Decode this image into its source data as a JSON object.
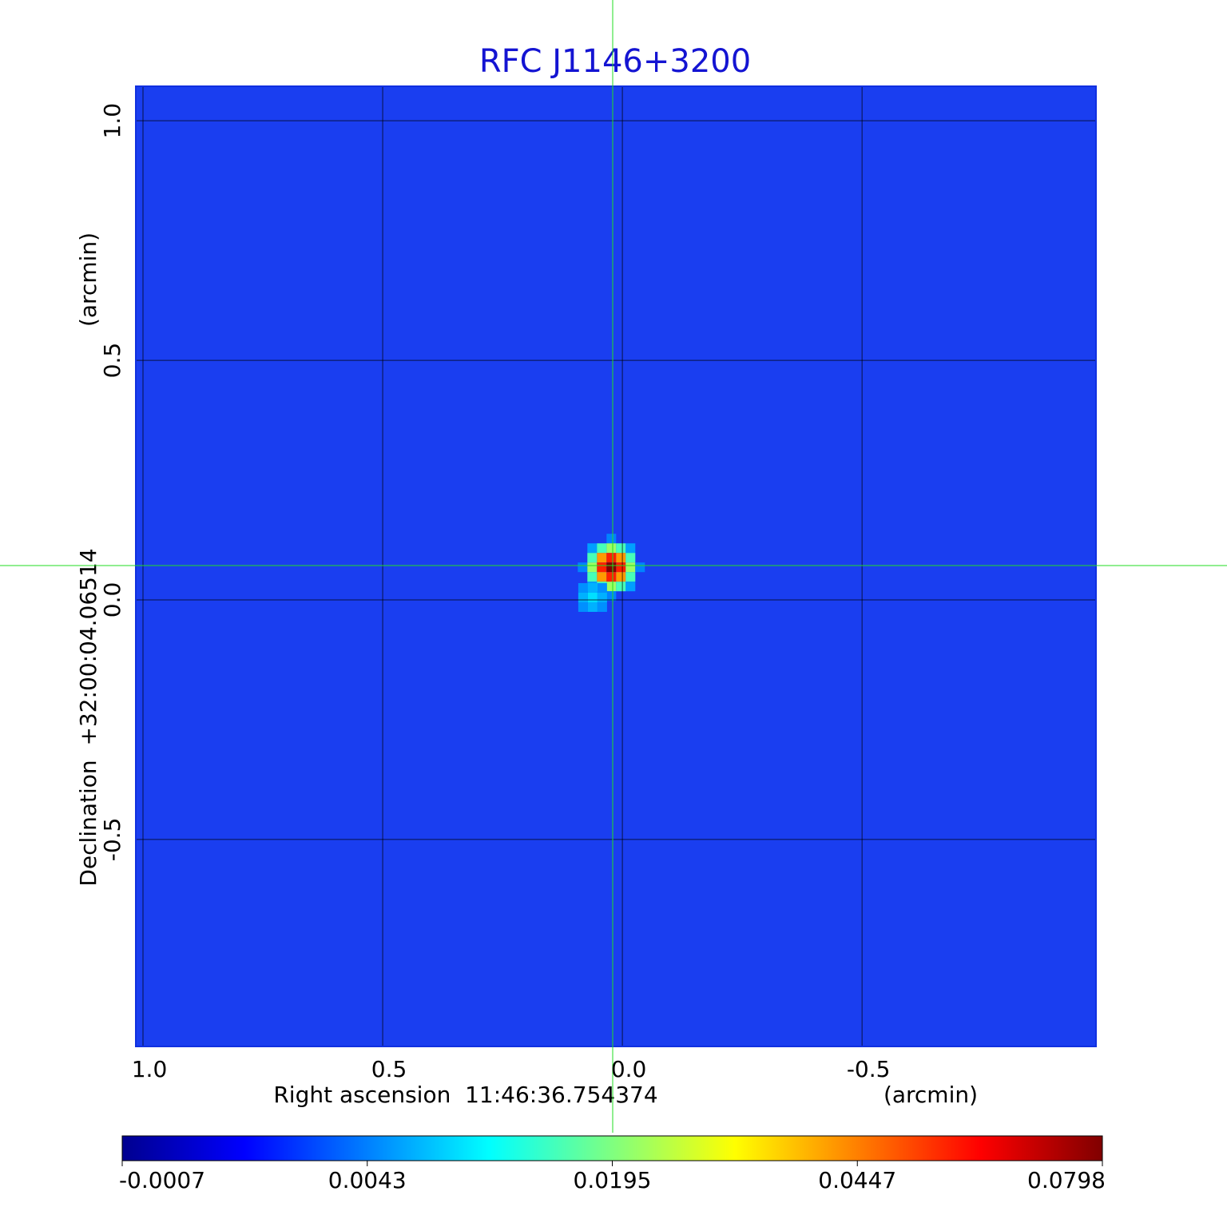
{
  "chart_data": {
    "type": "image",
    "title": "RFC J1146+3200",
    "x_label": "Right ascension  11:46:36.754374",
    "x_unit": "(arcmin)",
    "y_label": "Declination  +32:00:04.06514",
    "y_unit": "(arcmin)",
    "xlim": [
      1.015,
      -0.988
    ],
    "ylim": [
      -0.932,
      1.072
    ],
    "xticks": [
      {
        "value": 1,
        "label": "1.0"
      },
      {
        "value": 0.5,
        "label": "0.5"
      },
      {
        "value": 0,
        "label": "0.0"
      },
      {
        "value": -0.5,
        "label": "-0.5"
      }
    ],
    "yticks": [
      {
        "value": -0.5,
        "label": "-0.5"
      },
      {
        "value": 0,
        "label": "0.0"
      },
      {
        "value": 0.5,
        "label": "0.5"
      },
      {
        "value": 1,
        "label": "1.0"
      }
    ],
    "grid": true,
    "sources": {
      "x": [
        0.023,
        0.062
      ],
      "y": [
        0.068,
        0.005
      ],
      "values": [
        0.0798,
        0.01
      ]
    },
    "colorbar_ticks": [
      -0.0007,
      0.0043,
      0.0195,
      0.0447,
      0.0798
    ],
    "colormap": "jet"
  }
}
